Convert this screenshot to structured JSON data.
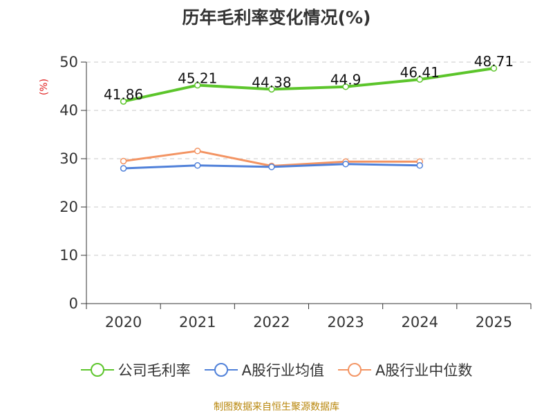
{
  "chart_data": {
    "type": "line",
    "title": "历年毛利率变化情况(%)",
    "ylabel": "(%)",
    "xlabel": "",
    "categories": [
      "2020",
      "2021",
      "2022",
      "2023",
      "2024",
      "2025"
    ],
    "ylim": [
      0,
      50
    ],
    "yticks": [
      0,
      10,
      20,
      30,
      40,
      50
    ],
    "grid": true,
    "legend_position": "bottom",
    "series": [
      {
        "name": "公司毛利率",
        "color": "#5cc52b",
        "values": [
          41.86,
          45.21,
          44.38,
          44.9,
          46.41,
          48.71
        ],
        "labels": [
          "41.86",
          "45.21",
          "44.38",
          "44.9",
          "46.41",
          "48.71"
        ]
      },
      {
        "name": "A股行业均值",
        "color": "#4f80d9",
        "values": [
          28.0,
          28.6,
          28.3,
          28.9,
          28.6,
          null
        ]
      },
      {
        "name": "A股行业中位数",
        "color": "#f39463",
        "values": [
          29.5,
          31.6,
          28.5,
          29.4,
          29.4,
          null
        ]
      }
    ]
  },
  "source_text": "制图数据来自恒生聚源数据库"
}
